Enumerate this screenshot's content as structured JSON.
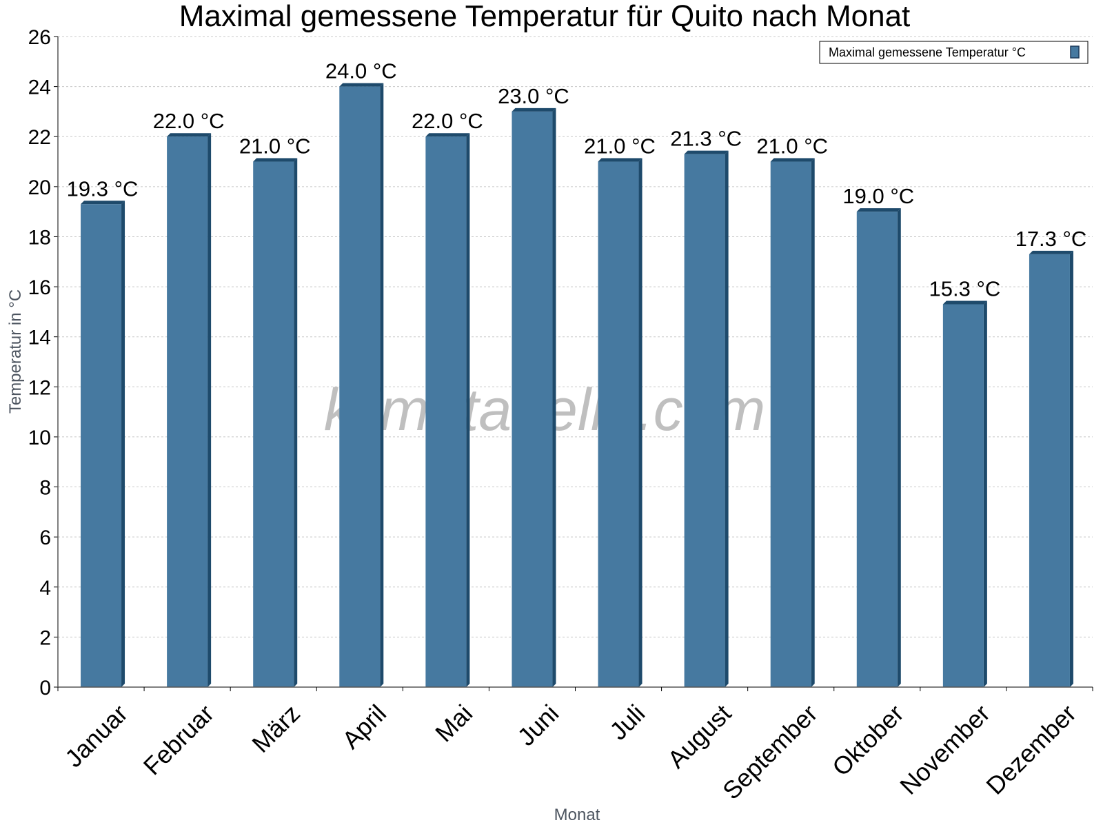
{
  "chart_data": {
    "type": "bar",
    "title": "Maximal gemessene Temperatur für Quito nach Monat",
    "xlabel": "Monat",
    "ylabel": "Temperatur in °C",
    "ylim": [
      0,
      26
    ],
    "yticks": [
      0,
      2,
      4,
      6,
      8,
      10,
      12,
      14,
      16,
      18,
      20,
      22,
      24,
      26
    ],
    "grid": true,
    "categories": [
      "Januar",
      "Februar",
      "März",
      "April",
      "Mai",
      "Juni",
      "Juli",
      "August",
      "September",
      "Oktober",
      "November",
      "Dezember"
    ],
    "series": [
      {
        "name": "Maximal gemessene Temperatur °C",
        "values": [
          19.3,
          22.0,
          21.0,
          24.0,
          22.0,
          23.0,
          21.0,
          21.3,
          21.0,
          19.0,
          15.3,
          17.3
        ],
        "labels": [
          "19.3 °C",
          "22.0 °C",
          "21.0 °C",
          "24.0 °C",
          "22.0 °C",
          "23.0 °C",
          "21.0 °C",
          "21.3 °C",
          "21.0 °C",
          "19.0 °C",
          "15.3 °C",
          "17.3 °C"
        ],
        "color": "#4679a0",
        "edge_color": "#1e4a6b"
      }
    ],
    "legend_position": "top-right",
    "watermark": "klimatabelle.com"
  }
}
